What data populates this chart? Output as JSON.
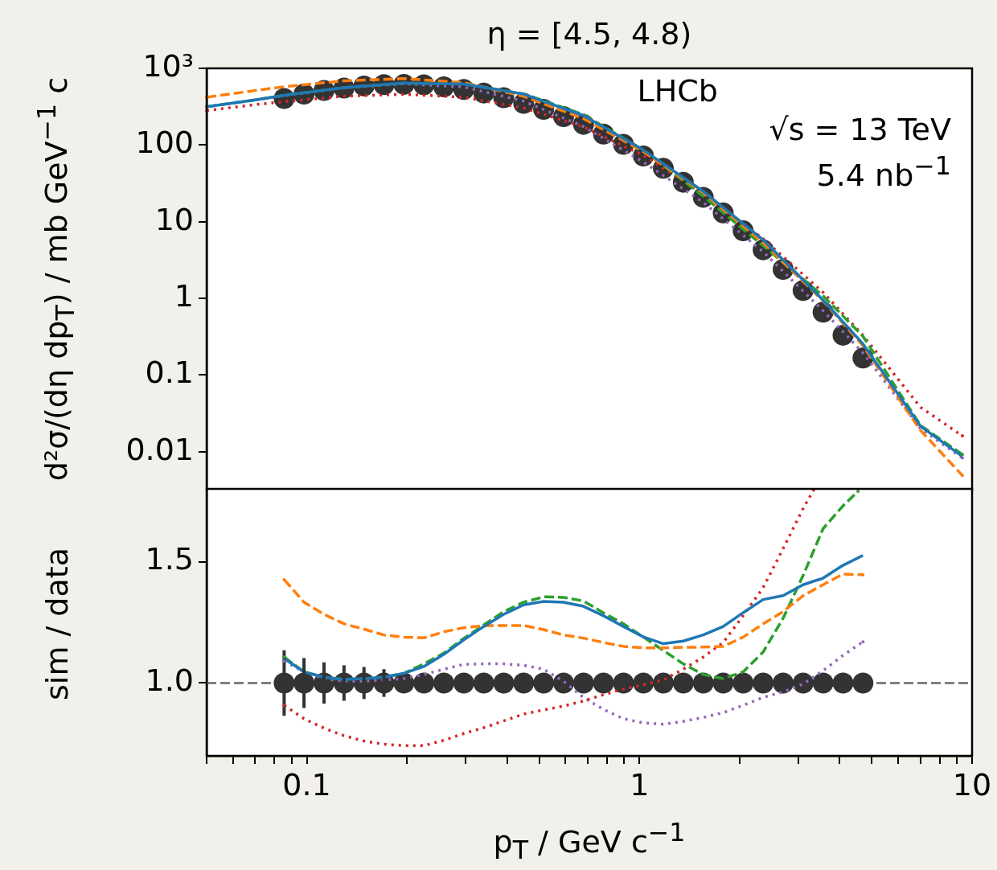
{
  "chart_data": [
    {
      "type": "line",
      "title": "η = [4.5, 4.8)",
      "ylabel": "d²σ/(dη dp$_{T}$) / mb GeV$^{−1}$ c",
      "annotations": [
        "LHCb",
        "√s = 13 TeV",
        "5.4  nb$^{−1}$"
      ],
      "log": "xy",
      "grid": false,
      "legend": false,
      "tick_labels": "y",
      "xlim": [
        0.05,
        10
      ],
      "ylim": [
        0.0032,
        1000
      ],
      "xticks": [
        {
          "value": 0.05,
          "label": null
        },
        {
          "value": 0.06,
          "label": null
        },
        {
          "value": 0.07,
          "label": null
        },
        {
          "value": 0.08,
          "label": null
        },
        {
          "value": 0.09,
          "label": null
        },
        0.1,
        {
          "value": 0.2,
          "label": null
        },
        {
          "value": 0.3,
          "label": null
        },
        {
          "value": 0.4,
          "label": null
        },
        {
          "value": 0.5,
          "label": null
        },
        {
          "value": 0.6,
          "label": null
        },
        {
          "value": 0.7,
          "label": null
        },
        {
          "value": 0.8,
          "label": null
        },
        {
          "value": 0.9,
          "label": null
        },
        1,
        {
          "value": 2,
          "label": null
        },
        {
          "value": 3,
          "label": null
        },
        {
          "value": 4,
          "label": null
        },
        {
          "value": 5,
          "label": null
        },
        {
          "value": 6,
          "label": null
        },
        {
          "value": 7,
          "label": null
        },
        {
          "value": 8,
          "label": null
        },
        {
          "value": 9,
          "label": null
        },
        10
      ],
      "yticks": [
        0.01,
        0.1,
        1,
        10,
        100,
        {
          "value": 1000,
          "label": "10³"
        }
      ],
      "x": [
        0.0855,
        0.0981,
        0.1127,
        0.1294,
        0.1486,
        0.1706,
        0.1959,
        0.2249,
        0.2582,
        0.2965,
        0.3404,
        0.3908,
        0.4487,
        0.5152,
        0.5916,
        0.6792,
        0.7798,
        0.8954,
        1.028,
        1.18,
        1.355,
        1.556,
        1.786,
        2.051,
        2.355,
        2.704,
        3.105,
        3.565,
        4.093,
        4.699
      ],
      "series": [
        {
          "type": "scatter",
          "marker": "circle",
          "color": "#333333",
          "values": [
            404,
            462,
            514,
            553,
            589,
            614,
            618,
            609,
            574,
            530,
            477,
            413,
            349,
            292,
            235,
            186,
            139,
            102,
            72,
            49.7,
            32.7,
            20.8,
            13.0,
            7.6,
            4.3,
            2.39,
            1.27,
            0.66,
            0.331,
            0.167
          ]
        },
        {
          "color": "#1f77b4",
          "line_style": "solid",
          "x": [
            0.05,
            0.07,
            0.0855,
            0.1294,
            0.1959,
            0.2965,
            0.4487,
            0.6792,
            1.028,
            1.556,
            2.355,
            3.565,
            4.699,
            7.0,
            9.35
          ],
          "values": [
            316,
            387,
            445,
            561,
            643,
            624,
            461,
            242,
            86,
            24.9,
            5.8,
            0.95,
            0.255,
            0.0215,
            0.0087
          ]
        },
        {
          "color": "#ff7f0e",
          "line_style": "dashed",
          "x": [
            0.05,
            0.07,
            0.0855,
            0.1294,
            0.1959,
            0.2965,
            0.4487,
            0.6792,
            1.028,
            1.556,
            2.355,
            3.565,
            4.699,
            7.0,
            9.35
          ],
          "values": [
            420,
            514,
            576,
            688,
            735,
            651,
            432,
            221,
            82,
            23.9,
            5.3,
            0.93,
            0.241,
            0.019,
            0.0049
          ]
        },
        {
          "color": "#2ca02c",
          "line_style": "dashed",
          "x": [
            0.05,
            0.07,
            0.0855,
            0.1294,
            0.1959,
            0.2965,
            0.4487,
            0.6792,
            1.028,
            1.556,
            2.355,
            3.565,
            4.699,
            7.0,
            9.35
          ],
          "values": [
            316,
            387,
            447,
            561,
            643,
            628,
            465,
            249,
            86,
            21.5,
            4.85,
            1.08,
            0.32,
            0.022,
            0.0092
          ]
        },
        {
          "color": "#d62728",
          "line_style": "dotted",
          "x": [
            0.05,
            0.07,
            0.0855,
            0.1294,
            0.1959,
            0.2965,
            0.4487,
            0.6792,
            1.028,
            1.556,
            2.355,
            3.565,
            4.699,
            7.0,
            9.35
          ],
          "values": [
            281,
            337,
            367,
            433,
            459,
            420,
            304,
            172,
            73,
            23,
            6.0,
            1.2,
            0.33,
            0.038,
            0.0161
          ]
        },
        {
          "color": "#9467bd",
          "line_style": "dotted",
          "x": [
            0.05,
            0.07,
            0.0855,
            0.1294,
            0.1959,
            0.2965,
            0.4487,
            0.6792,
            1.028,
            1.556,
            2.355,
            3.565,
            4.699,
            7.0,
            9.35
          ],
          "values": [
            316,
            387,
            440,
            557,
            629,
            571,
            374,
            174,
            60,
            17.8,
            4.05,
            0.69,
            0.195,
            0.02,
            0.0083
          ]
        }
      ]
    },
    {
      "type": "line",
      "xlabel": "p$_{T}$ / GeV c$^{−1}$",
      "ylabel": "sim / data",
      "log": "x",
      "grid": false,
      "legend": false,
      "xlim": [
        0.05,
        10
      ],
      "ylim": [
        0.7,
        1.8
      ],
      "xticks": [
        {
          "value": 0.05,
          "label": null
        },
        {
          "value": 0.06,
          "label": null
        },
        {
          "value": 0.07,
          "label": null
        },
        {
          "value": 0.08,
          "label": null
        },
        {
          "value": 0.09,
          "label": null
        },
        0.1,
        {
          "value": 0.2,
          "label": null
        },
        {
          "value": 0.3,
          "label": null
        },
        {
          "value": 0.4,
          "label": null
        },
        {
          "value": 0.5,
          "label": null
        },
        {
          "value": 0.6,
          "label": null
        },
        {
          "value": 0.7,
          "label": null
        },
        {
          "value": 0.8,
          "label": null
        },
        {
          "value": 0.9,
          "label": null
        },
        1,
        {
          "value": 2,
          "label": null
        },
        {
          "value": 3,
          "label": null
        },
        {
          "value": 4,
          "label": null
        },
        {
          "value": 5,
          "label": null
        },
        {
          "value": 6,
          "label": null
        },
        {
          "value": 7,
          "label": null
        },
        {
          "value": 8,
          "label": null
        },
        {
          "value": 9,
          "label": null
        },
        10
      ],
      "yticks": [
        {
          "value": 1,
          "label": "1.0"
        },
        1.5
      ],
      "ref_lines": [
        {
          "axis": "y",
          "value": 1,
          "color": "#808080",
          "line_style": "dashed"
        }
      ],
      "x": [
        0.0855,
        0.0981,
        0.1127,
        0.1294,
        0.1486,
        0.1706,
        0.1959,
        0.2249,
        0.2582,
        0.2965,
        0.3404,
        0.3908,
        0.4487,
        0.5152,
        0.5916,
        0.6792,
        0.7798,
        0.8954,
        1.028,
        1.18,
        1.355,
        1.556,
        1.786,
        2.051,
        2.355,
        2.704,
        3.105,
        3.565,
        4.093,
        4.699
      ],
      "series": [
        {
          "type": "scatter",
          "marker": "circle",
          "color": "#333333",
          "values": [
            1,
            1,
            1,
            1,
            1,
            1,
            1,
            1,
            1,
            1,
            1,
            1,
            1,
            1,
            1,
            1,
            1,
            1,
            1,
            1,
            1,
            1,
            1,
            1,
            1,
            1,
            1,
            1,
            1,
            1
          ],
          "errors": [
            0.135,
            0.103,
            0.085,
            0.073,
            0.066,
            0.057,
            null,
            null,
            null,
            null,
            null,
            null,
            null,
            null,
            null,
            null,
            null,
            null,
            null,
            null,
            null,
            null,
            null,
            null,
            null,
            null,
            null,
            null,
            null,
            null
          ]
        },
        {
          "color": "#1f77b4",
          "line_style": "solid",
          "values": [
            1.101,
            1.046,
            1.024,
            1.015,
            1.018,
            1.024,
            1.04,
            1.068,
            1.118,
            1.178,
            1.233,
            1.283,
            1.322,
            1.336,
            1.333,
            1.316,
            1.277,
            1.233,
            1.19,
            1.162,
            1.173,
            1.198,
            1.233,
            1.29,
            1.344,
            1.36,
            1.405,
            1.432,
            1.485,
            1.526
          ]
        },
        {
          "color": "#ff7f0e",
          "line_style": "dashed",
          "values": [
            1.426,
            1.333,
            1.283,
            1.244,
            1.222,
            1.198,
            1.189,
            1.186,
            1.211,
            1.228,
            1.236,
            1.237,
            1.237,
            1.22,
            1.198,
            1.185,
            1.167,
            1.151,
            1.145,
            1.145,
            1.147,
            1.148,
            1.151,
            1.189,
            1.244,
            1.294,
            1.36,
            1.405,
            1.449,
            1.446
          ]
        },
        {
          "color": "#2ca02c",
          "line_style": "dashed",
          "x": [
            0.0855,
            0.0981,
            0.1127,
            0.1294,
            0.1486,
            0.1706,
            0.1959,
            0.2249,
            0.2582,
            0.2965,
            0.3404,
            0.3908,
            0.4487,
            0.5152,
            0.5916,
            0.6792,
            0.7798,
            0.8954,
            1.028,
            1.18,
            1.355,
            1.556,
            1.786,
            2.051,
            2.355,
            2.704,
            3.105,
            3.565,
            4.093,
            4.54
          ],
          "values": [
            1.107,
            1.046,
            1.024,
            1.015,
            1.018,
            1.024,
            1.04,
            1.079,
            1.123,
            1.184,
            1.239,
            1.294,
            1.333,
            1.355,
            1.353,
            1.338,
            1.289,
            1.244,
            1.189,
            1.134,
            1.079,
            1.035,
            1.018,
            1.046,
            1.128,
            1.267,
            1.443,
            1.636,
            1.73,
            1.79
          ]
        },
        {
          "color": "#d62728",
          "line_style": "dotted",
          "x": [
            0.0855,
            0.0981,
            0.1127,
            0.1294,
            0.1486,
            0.1706,
            0.1959,
            0.2249,
            0.2582,
            0.2965,
            0.3404,
            0.3908,
            0.4487,
            0.5152,
            0.5916,
            0.6792,
            0.7798,
            0.8954,
            1.028,
            1.18,
            1.355,
            1.556,
            1.786,
            2.051,
            2.355,
            2.704,
            3.105,
            3.34
          ],
          "values": [
            0.908,
            0.853,
            0.814,
            0.783,
            0.761,
            0.748,
            0.742,
            0.742,
            0.764,
            0.792,
            0.816,
            0.844,
            0.872,
            0.889,
            0.905,
            0.926,
            0.952,
            0.975,
            0.993,
            1.013,
            1.057,
            1.107,
            1.167,
            1.278,
            1.393,
            1.554,
            1.719,
            1.796
          ]
        },
        {
          "color": "#9467bd",
          "line_style": "dotted",
          "values": [
            1.09,
            1.046,
            1.018,
            1.007,
            1.007,
            1.013,
            1.018,
            1.035,
            1.057,
            1.077,
            1.079,
            1.079,
            1.073,
            1.057,
            1.007,
            0.94,
            0.891,
            0.853,
            0.836,
            0.83,
            0.842,
            0.858,
            0.878,
            0.908,
            0.941,
            0.963,
            0.996,
            1.051,
            1.114,
            1.17
          ]
        }
      ]
    }
  ]
}
